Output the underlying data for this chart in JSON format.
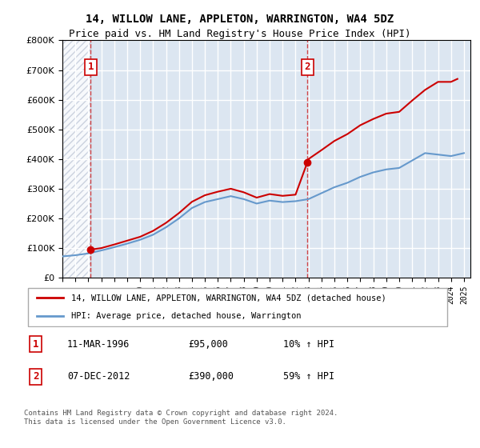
{
  "title": "14, WILLOW LANE, APPLETON, WARRINGTON, WA4 5DZ",
  "subtitle": "Price paid vs. HM Land Registry's House Price Index (HPI)",
  "ylabel": "",
  "bg_color": "#dce6f1",
  "hatch_color": "#c0c8d8",
  "grid_color": "#ffffff",
  "sale1_date": 1996.19,
  "sale1_price": 95000,
  "sale1_label": "1",
  "sale2_date": 2012.92,
  "sale2_price": 390000,
  "sale2_label": "2",
  "xmin": 1994.0,
  "xmax": 2025.5,
  "ymin": 0,
  "ymax": 800000,
  "legend_line1": "14, WILLOW LANE, APPLETON, WARRINGTON, WA4 5DZ (detached house)",
  "legend_line2": "HPI: Average price, detached house, Warrington",
  "ann1_num": "1",
  "ann1_date": "11-MAR-1996",
  "ann1_price": "£95,000",
  "ann1_hpi": "10% ↑ HPI",
  "ann2_num": "2",
  "ann2_date": "07-DEC-2012",
  "ann2_price": "£390,000",
  "ann2_hpi": "59% ↑ HPI",
  "footer": "Contains HM Land Registry data © Crown copyright and database right 2024.\nThis data is licensed under the Open Government Licence v3.0.",
  "red_line_color": "#cc0000",
  "blue_line_color": "#6699cc",
  "marker_color": "#cc0000",
  "hpi_years": [
    1994,
    1995,
    1996,
    1997,
    1998,
    1999,
    2000,
    2001,
    2002,
    2003,
    2004,
    2005,
    2006,
    2007,
    2008,
    2009,
    2010,
    2011,
    2012,
    2013,
    2014,
    2015,
    2016,
    2017,
    2018,
    2019,
    2020,
    2021,
    2022,
    2023,
    2024,
    2025
  ],
  "hpi_values": [
    72000,
    76000,
    82000,
    92000,
    103000,
    115000,
    128000,
    145000,
    170000,
    200000,
    235000,
    255000,
    265000,
    275000,
    265000,
    250000,
    260000,
    255000,
    258000,
    265000,
    285000,
    305000,
    320000,
    340000,
    355000,
    365000,
    370000,
    395000,
    420000,
    415000,
    410000,
    420000
  ],
  "red_years": [
    1996.19,
    1997,
    1998,
    1999,
    2000,
    2001,
    2002,
    2003,
    2004,
    2005,
    2006,
    2007,
    2008,
    2009,
    2010,
    2011,
    2012,
    2012.92,
    2013,
    2014,
    2015,
    2016,
    2017,
    2018,
    2019,
    2020,
    2021,
    2022,
    2023,
    2024,
    2024.5
  ],
  "red_values": [
    95000,
    100000,
    112000,
    125000,
    138000,
    158000,
    185000,
    218000,
    256000,
    278000,
    290000,
    300000,
    288000,
    270000,
    282000,
    276000,
    280000,
    390000,
    400000,
    430000,
    461000,
    484000,
    514000,
    535000,
    553000,
    559000,
    597000,
    633000,
    660000,
    660000,
    670000
  ]
}
